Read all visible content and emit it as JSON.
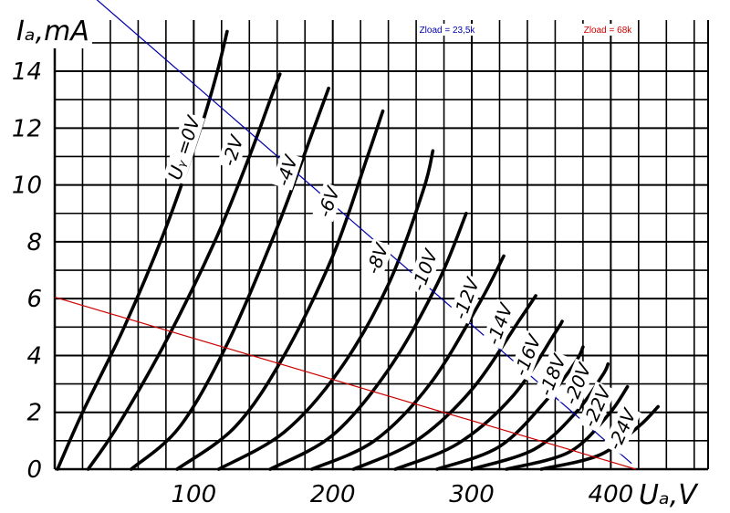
{
  "chart_data": {
    "type": "line",
    "xlabel": "Uₐ,V",
    "ylabel": "Iₐ,mA",
    "xlim": [
      0,
      470
    ],
    "ylim": [
      0,
      15.8
    ],
    "x_ticks": [
      "100",
      "200",
      "300",
      "400"
    ],
    "y_ticks": [
      "0",
      "2",
      "4",
      "6",
      "8",
      "10",
      "12",
      "14"
    ],
    "grid": true,
    "series": [
      {
        "name": "Uᵧ =0V",
        "points": [
          [
            2,
            0
          ],
          [
            20,
            2
          ],
          [
            50,
            5
          ],
          [
            80,
            8.5
          ],
          [
            105,
            12
          ],
          [
            117,
            14
          ],
          [
            124,
            15.4
          ]
        ]
      },
      {
        "name": "-2V",
        "points": [
          [
            24,
            0
          ],
          [
            45,
            1.5
          ],
          [
            80,
            4.5
          ],
          [
            115,
            8
          ],
          [
            140,
            11
          ],
          [
            155,
            13
          ],
          [
            162,
            13.9
          ]
        ]
      },
      {
        "name": "-4V",
        "points": [
          [
            55,
            0
          ],
          [
            90,
            1.5
          ],
          [
            125,
            4.5
          ],
          [
            160,
            8.5
          ],
          [
            185,
            11.8
          ],
          [
            197,
            13.4
          ]
        ]
      },
      {
        "name": "-6V",
        "points": [
          [
            88,
            0
          ],
          [
            130,
            1.5
          ],
          [
            165,
            4
          ],
          [
            200,
            7.5
          ],
          [
            225,
            11
          ],
          [
            236,
            12.6
          ]
        ]
      },
      {
        "name": "-8V",
        "points": [
          [
            118,
            0
          ],
          [
            165,
            1.3
          ],
          [
            205,
            3.5
          ],
          [
            240,
            6.5
          ],
          [
            265,
            9.8
          ],
          [
            272,
            11.2
          ]
        ]
      },
      {
        "name": "-10V",
        "points": [
          [
            155,
            0
          ],
          [
            200,
            1.2
          ],
          [
            240,
            3.5
          ],
          [
            275,
            6.5
          ],
          [
            296,
            9
          ]
        ]
      },
      {
        "name": "-12V",
        "points": [
          [
            185,
            0
          ],
          [
            230,
            1
          ],
          [
            270,
            3
          ],
          [
            305,
            5.8
          ],
          [
            323,
            7.5
          ]
        ]
      },
      {
        "name": "-14V",
        "points": [
          [
            215,
            0
          ],
          [
            260,
            1
          ],
          [
            300,
            2.8
          ],
          [
            335,
            5.3
          ],
          [
            346,
            6.1
          ]
        ]
      },
      {
        "name": "-16V",
        "points": [
          [
            245,
            0
          ],
          [
            290,
            0.9
          ],
          [
            330,
            2.6
          ],
          [
            360,
            4.8
          ],
          [
            365,
            5.2
          ]
        ]
      },
      {
        "name": "-18V",
        "points": [
          [
            275,
            0
          ],
          [
            320,
            0.8
          ],
          [
            355,
            2.5
          ],
          [
            375,
            3.8
          ],
          [
            380,
            4.3
          ]
        ]
      },
      {
        "name": "-20V",
        "points": [
          [
            300,
            0
          ],
          [
            345,
            0.7
          ],
          [
            375,
            2
          ],
          [
            394,
            3.3
          ],
          [
            398,
            3.7
          ]
        ]
      },
      {
        "name": "-22V",
        "points": [
          [
            325,
            0
          ],
          [
            370,
            0.6
          ],
          [
            398,
            1.9
          ],
          [
            412,
            2.9
          ]
        ]
      },
      {
        "name": "-24V",
        "points": [
          [
            350,
            0
          ],
          [
            392,
            0.5
          ],
          [
            420,
            1.5
          ],
          [
            434,
            2.2
          ]
        ]
      }
    ],
    "load_lines": [
      {
        "name": "Zload = 23,5k",
        "color": "#0000aa",
        "points": [
          [
            0,
            17.8
          ],
          [
            415,
            0.2
          ]
        ]
      },
      {
        "name": "Zload = 68k",
        "color": "#cc0000",
        "points": [
          [
            0,
            6.05
          ],
          [
            418,
            0
          ]
        ]
      }
    ],
    "label_positions": [
      {
        "name": "Uᵧ =0V",
        "at": [
          93,
          11.3
        ],
        "angle": -72
      },
      {
        "name": "-2V",
        "at": [
          128,
          11.2
        ],
        "angle": -72
      },
      {
        "name": "-4V",
        "at": [
          167,
          10.5
        ],
        "angle": -72
      },
      {
        "name": "-6V",
        "at": [
          197,
          9.4
        ],
        "angle": -70
      },
      {
        "name": "-8V",
        "at": [
          232,
          7.4
        ],
        "angle": -70
      },
      {
        "name": "-10V",
        "at": [
          266,
          7
        ],
        "angle": -70
      },
      {
        "name": "-12V",
        "at": [
          296,
          6
        ],
        "angle": -70
      },
      {
        "name": "-14V",
        "at": [
          320,
          5.1
        ],
        "angle": -70
      },
      {
        "name": "-16V",
        "at": [
          340,
          4
        ],
        "angle": -68
      },
      {
        "name": "-18V",
        "at": [
          358,
          3.3
        ],
        "angle": -68
      },
      {
        "name": "-20V",
        "at": [
          376,
          3
        ],
        "angle": -68
      },
      {
        "name": "-22V",
        "at": [
          390,
          2.2
        ],
        "angle": -66
      },
      {
        "name": "-24V",
        "at": [
          408,
          1.4
        ],
        "angle": -66
      }
    ]
  }
}
